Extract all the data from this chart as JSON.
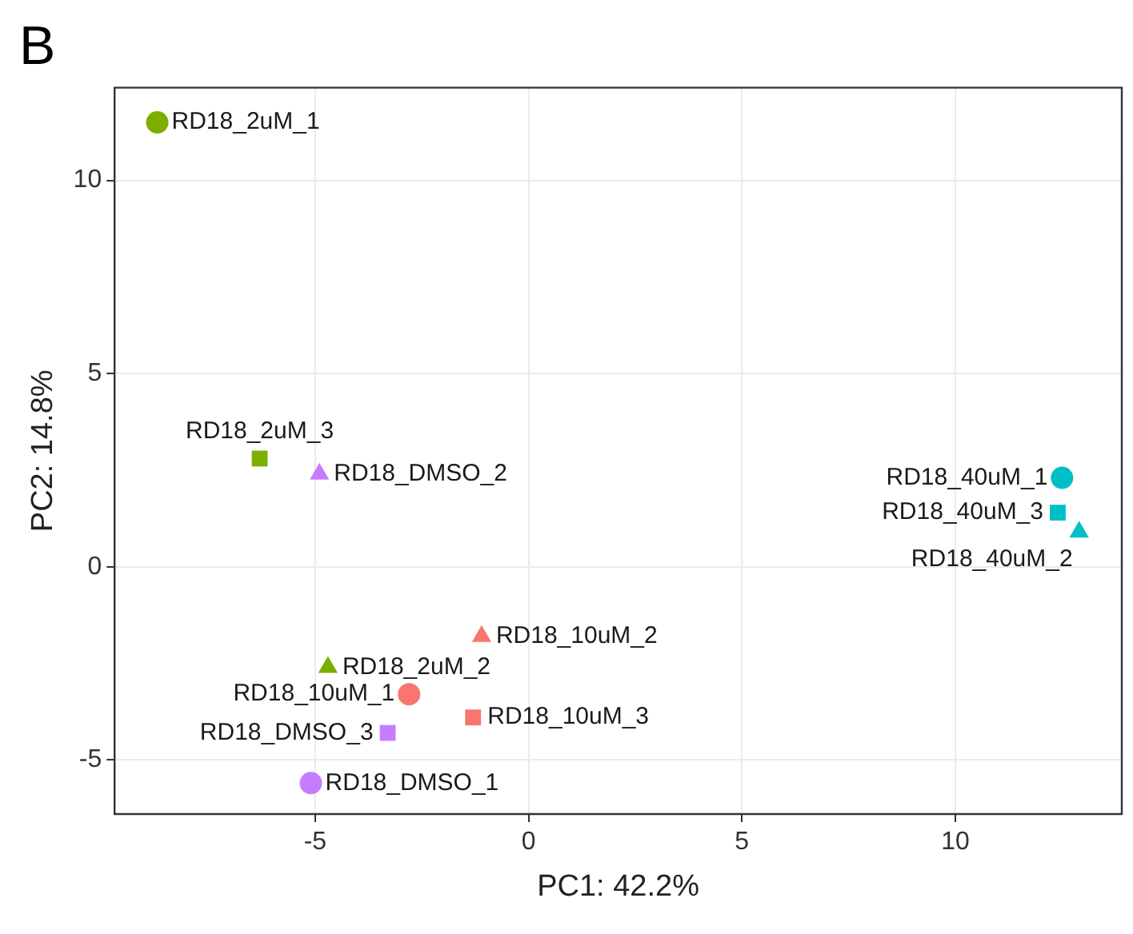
{
  "chart_data": {
    "type": "scatter",
    "title": "B",
    "xlabel": "PC1: 42.2%",
    "ylabel": "PC2: 14.8%",
    "xlim": [
      -9.7,
      13.9
    ],
    "ylim": [
      -6.4,
      12.4
    ],
    "xticks": [
      -5,
      0,
      5,
      10
    ],
    "yticks": [
      -5,
      0,
      5,
      10
    ],
    "grid": true,
    "legend": false,
    "series": [
      {
        "name": "RD18_2uM_1",
        "color": "#7cae00",
        "marker": "circle",
        "x": [
          -8.7
        ],
        "values": [
          11.5
        ]
      },
      {
        "name": "RD18_2uM_2",
        "color": "#7cae00",
        "marker": "triangle",
        "x": [
          -4.7
        ],
        "values": [
          -2.6
        ]
      },
      {
        "name": "RD18_2uM_3",
        "color": "#7cae00",
        "marker": "square",
        "x": [
          -6.3
        ],
        "values": [
          2.8
        ]
      },
      {
        "name": "RD18_DMSO_1",
        "color": "#c77cff",
        "marker": "circle",
        "x": [
          -5.1
        ],
        "values": [
          -5.6
        ]
      },
      {
        "name": "RD18_DMSO_2",
        "color": "#c77cff",
        "marker": "triangle",
        "x": [
          -4.9
        ],
        "values": [
          2.4
        ]
      },
      {
        "name": "RD18_DMSO_3",
        "color": "#c77cff",
        "marker": "square",
        "x": [
          -3.3
        ],
        "values": [
          -4.3
        ]
      },
      {
        "name": "RD18_10uM_1",
        "color": "#f8766d",
        "marker": "circle",
        "x": [
          -2.8
        ],
        "values": [
          -3.3
        ]
      },
      {
        "name": "RD18_10uM_2",
        "color": "#f8766d",
        "marker": "triangle",
        "x": [
          -1.1
        ],
        "values": [
          -1.8
        ]
      },
      {
        "name": "RD18_10uM_3",
        "color": "#f8766d",
        "marker": "square",
        "x": [
          -1.3
        ],
        "values": [
          -3.9
        ]
      },
      {
        "name": "RD18_40uM_1",
        "color": "#00bfc4",
        "marker": "circle",
        "x": [
          12.5
        ],
        "values": [
          2.3
        ]
      },
      {
        "name": "RD18_40uM_2",
        "color": "#00bfc4",
        "marker": "triangle",
        "x": [
          12.9
        ],
        "values": [
          0.9
        ]
      },
      {
        "name": "RD18_40uM_3",
        "color": "#00bfc4",
        "marker": "square",
        "x": [
          12.4
        ],
        "values": [
          1.4
        ]
      }
    ]
  }
}
